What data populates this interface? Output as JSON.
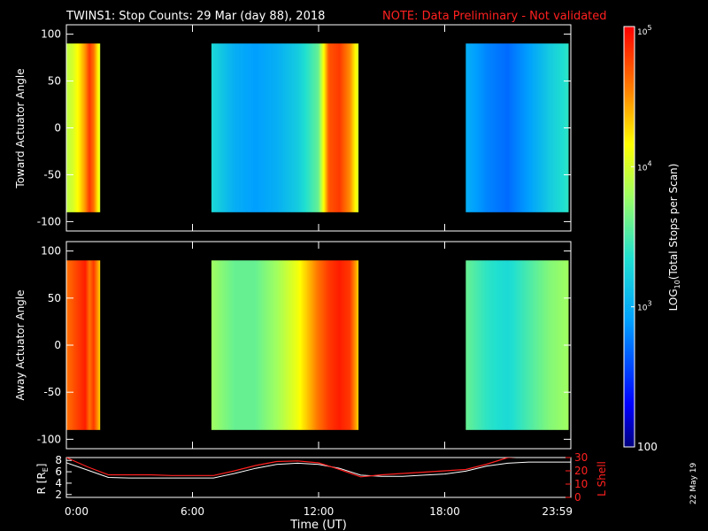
{
  "header": {
    "title": "TWINS1: Stop Counts: 29 Mar (day  88), 2018",
    "note": "NOTE: Data Preliminary - Not validated"
  },
  "colors": {
    "note": "#ff2020",
    "r_line": "#ffffff",
    "lshell_line": "#ff2020",
    "background": "#000000"
  },
  "chart_data": [
    {
      "type": "heatmap",
      "ylabel": "Toward Actuator Angle",
      "ylim": [
        -110,
        110
      ],
      "y_ticks": [
        "100",
        "50",
        "0",
        "-50",
        "-100"
      ],
      "y_tick_values": [
        100,
        50,
        0,
        -50,
        -100
      ],
      "xlim": [
        0,
        24
      ],
      "angle_range": [
        -90,
        90
      ],
      "data_intervals_hours": [
        [
          0.0,
          1.6
        ],
        [
          6.9,
          13.9
        ],
        [
          19.0,
          23.9
        ]
      ],
      "segments_log10_counts": [
        {
          "x": [
            0.0,
            0.3,
            0.6,
            0.9,
            1.1,
            1.3,
            1.6
          ],
          "values": [
            3.9,
            4.0,
            4.2,
            4.5,
            4.8,
            4.6,
            4.0
          ]
        },
        {
          "x": [
            6.9,
            8.0,
            9.0,
            10.0,
            11.0,
            12.0,
            12.5,
            13.0,
            13.5,
            13.9
          ],
          "values": [
            3.3,
            3.0,
            2.9,
            3.0,
            3.2,
            3.6,
            4.7,
            4.8,
            4.5,
            4.0
          ]
        },
        {
          "x": [
            19.0,
            20.0,
            21.0,
            22.0,
            23.0,
            23.9
          ],
          "values": [
            3.0,
            2.8,
            2.7,
            2.9,
            3.2,
            3.4
          ]
        }
      ]
    },
    {
      "type": "heatmap",
      "ylabel": "Away Actuator Angle",
      "ylim": [
        -110,
        110
      ],
      "y_ticks": [
        "100",
        "50",
        "0",
        "-50",
        "-100"
      ],
      "y_tick_values": [
        100,
        50,
        0,
        -50,
        -100
      ],
      "xlim": [
        0,
        24
      ],
      "angle_range": [
        -90,
        90
      ],
      "data_intervals_hours": [
        [
          0.0,
          1.6
        ],
        [
          6.9,
          13.9
        ],
        [
          19.0,
          23.9
        ]
      ],
      "segments_log10_counts": [
        {
          "x": [
            0.0,
            0.3,
            0.6,
            0.9,
            1.1,
            1.3,
            1.6
          ],
          "values": [
            4.6,
            4.7,
            4.8,
            4.9,
            4.6,
            4.8,
            4.3
          ]
        },
        {
          "x": [
            6.9,
            8.0,
            9.0,
            10.0,
            11.0,
            12.0,
            12.5,
            13.0,
            13.5,
            13.9
          ],
          "values": [
            3.8,
            3.6,
            3.6,
            3.8,
            4.1,
            4.6,
            4.8,
            4.9,
            4.8,
            4.3
          ]
        },
        {
          "x": [
            19.0,
            20.0,
            21.0,
            22.0,
            23.0,
            23.9
          ],
          "values": [
            3.6,
            3.4,
            3.3,
            3.5,
            3.7,
            3.8
          ]
        }
      ]
    },
    {
      "type": "line",
      "ylabel": "R [R",
      "ylabel_sub": "E",
      "ylabel_end": "]",
      "ylim": [
        1.5,
        8.5
      ],
      "y_ticks": [
        "8",
        "6",
        "4",
        "2"
      ],
      "y_tick_values": [
        8,
        6,
        4,
        2
      ],
      "y2label": "L Shell",
      "y2lim": [
        0,
        30
      ],
      "y2_ticks": [
        "30",
        "20",
        "10",
        "0"
      ],
      "y2_tick_values": [
        30,
        20,
        10,
        0
      ],
      "xlabel": "Time (UT)",
      "xlim": [
        0,
        24
      ],
      "x_ticks": [
        "0:00",
        "6:00",
        "12:00",
        "18:00",
        "23:59"
      ],
      "x_tick_values": [
        0,
        6,
        12,
        18,
        24
      ],
      "series": [
        {
          "x": [
            0,
            1,
            2,
            3,
            4,
            5,
            6,
            7,
            8,
            9,
            10,
            11,
            12,
            13,
            14,
            15,
            16,
            17,
            18,
            19,
            20,
            21,
            22,
            23,
            24
          ],
          "values": [
            7.6,
            6.3,
            5.0,
            4.9,
            4.9,
            4.9,
            4.9,
            4.9,
            5.7,
            6.6,
            7.3,
            7.5,
            7.3,
            6.6,
            5.4,
            5.2,
            5.2,
            5.4,
            5.6,
            6.1,
            7.0,
            7.5,
            7.7,
            7.7,
            7.7
          ]
        },
        {
          "x": [
            0,
            1,
            2,
            3,
            4,
            5,
            6,
            7,
            8,
            9,
            10,
            11,
            12,
            13,
            14,
            15,
            16,
            17,
            18,
            19,
            20,
            21,
            22
          ],
          "values": [
            30,
            23,
            17,
            17,
            17,
            16.5,
            16.5,
            16.5,
            20,
            24,
            27,
            27.5,
            26,
            21,
            15.5,
            17,
            18,
            19,
            20,
            21,
            25,
            30,
            31
          ]
        }
      ]
    }
  ],
  "colorbar": {
    "label_pre": "LOG",
    "label_sub": "10",
    "label_post": "(Total Stops per Scan)",
    "ticks": [
      {
        "log": 5,
        "base": "10",
        "exp": "5"
      },
      {
        "log": 4,
        "base": "10",
        "exp": "4"
      },
      {
        "log": 3,
        "base": "10",
        "exp": "3"
      },
      {
        "log": 2,
        "base": "100",
        "exp": ""
      }
    ],
    "range_log": [
      2,
      5
    ]
  },
  "footer": {
    "date_stamp": "22 May 19"
  }
}
